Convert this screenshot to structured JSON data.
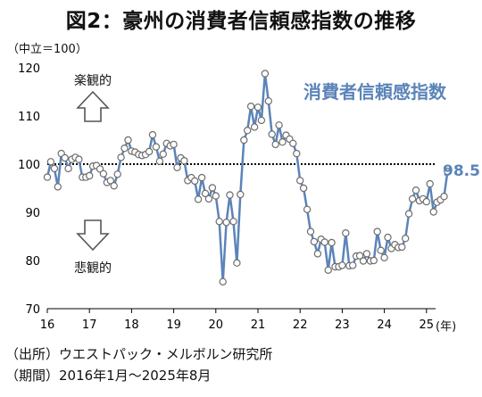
{
  "figure": {
    "title": "図2：豪州の消費者信頼感指数の推移",
    "unit_label": "（中立＝100）",
    "source": "（出所）ウエストパック・メルボルン研究所",
    "period": "（期間）2016年1月～2025年8月"
  },
  "chart_data": {
    "type": "line",
    "series": [
      {
        "name": "消費者信頼感指数",
        "color": "#5b84b9",
        "values": [
          97.3,
          100.5,
          99.1,
          95.3,
          102.2,
          101.3,
          99.1,
          101.0,
          101.4,
          101.0,
          97.3,
          97.3,
          97.6,
          99.6,
          99.7,
          99.0,
          98.0,
          96.2,
          96.6,
          95.5,
          97.9,
          101.4,
          103.3,
          105.0,
          102.7,
          102.5,
          102.0,
          101.8,
          102.0,
          102.6,
          106.1,
          103.6,
          100.6,
          102.1,
          104.3,
          103.8,
          104.1,
          99.3,
          101.3,
          100.7,
          96.6,
          97.2,
          96.5,
          92.7,
          97.2,
          93.9,
          92.8,
          95.1,
          93.4,
          88.1,
          75.6,
          87.9,
          93.6,
          88.1,
          79.5,
          93.7,
          105.0,
          107.0,
          112.0,
          107.7,
          111.8,
          109.1,
          118.8,
          113.1,
          106.2,
          104.1,
          108.1,
          104.6,
          106.0,
          105.2,
          104.3,
          102.2,
          96.6,
          95.0,
          90.6,
          86.0,
          83.9,
          81.4,
          84.4,
          83.8,
          78.0,
          83.7,
          78.7,
          78.7,
          79.0,
          85.7,
          78.9,
          79.0,
          80.9,
          81.0,
          79.9,
          81.4,
          79.9,
          80.0,
          86.0,
          82.1,
          80.6,
          84.8,
          82.5,
          83.3,
          82.7,
          82.8,
          84.6,
          89.7,
          92.8,
          94.6,
          92.4,
          92.8,
          92.2,
          95.9,
          90.1,
          92.1,
          92.6,
          93.3,
          98.5
        ]
      }
    ],
    "x_start": 2016,
    "x_tick_labels": [
      "16",
      "17",
      "18",
      "19",
      "20",
      "21",
      "22",
      "23",
      "24",
      "25"
    ],
    "x_suffix": "(年)",
    "ylim": [
      70,
      120
    ],
    "y_ticks": [
      70,
      80,
      90,
      100,
      110,
      120
    ],
    "reference_line": 100,
    "last_value_label": "98.5",
    "annotations": {
      "optimistic": "楽観的",
      "pessimistic": "悲観的"
    },
    "grid": false
  }
}
